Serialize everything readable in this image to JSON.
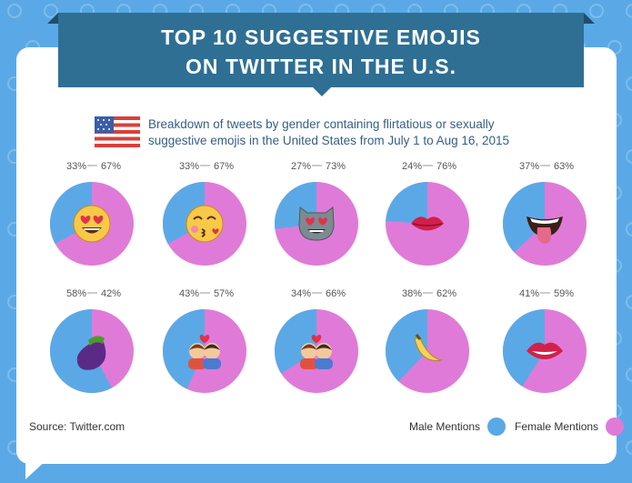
{
  "title": [
    "TOP 10 SUGGESTIVE EMOJIS",
    "ON TWITTER IN THE U.S."
  ],
  "subtitle": [
    "Breakdown of tweets by gender containing flirtatious or sexually",
    "suggestive emojis in the United States from July 1 to Aug 16, 2015"
  ],
  "source": "Source: Twitter.com",
  "legend": {
    "male": "Male Mentions",
    "female": "Female Mentions"
  },
  "colors": {
    "male": "#5aa9e6",
    "female": "#e07ad8",
    "background": "#5aa9e6",
    "banner": "#2f6f94"
  },
  "chart_data": {
    "type": "pie",
    "series_names": [
      "Male Mentions",
      "Female Mentions"
    ],
    "charts": [
      {
        "emoji": "heart-eyes-face-icon",
        "male": 33,
        "female": 67,
        "male_label": "33%",
        "female_label": "67%"
      },
      {
        "emoji": "kissing-face-icon",
        "male": 33,
        "female": 67,
        "male_label": "33%",
        "female_label": "67%"
      },
      {
        "emoji": "heart-eyes-cat-icon",
        "male": 27,
        "female": 73,
        "male_label": "27%",
        "female_label": "73%"
      },
      {
        "emoji": "kiss-lips-icon",
        "male": 24,
        "female": 76,
        "male_label": "24%",
        "female_label": "76%"
      },
      {
        "emoji": "tongue-out-icon",
        "male": 37,
        "female": 63,
        "male_label": "37%",
        "female_label": "63%"
      },
      {
        "emoji": "eggplant-icon",
        "male": 58,
        "female": 42,
        "male_label": "58%",
        "female_label": "42%"
      },
      {
        "emoji": "couple-kiss-icon",
        "male": 43,
        "female": 57,
        "male_label": "43%",
        "female_label": "57%"
      },
      {
        "emoji": "couple-heart-icon",
        "male": 34,
        "female": 66,
        "male_label": "34%",
        "female_label": "66%"
      },
      {
        "emoji": "banana-icon",
        "male": 38,
        "female": 62,
        "male_label": "38%",
        "female_label": "62%"
      },
      {
        "emoji": "mouth-icon",
        "male": 41,
        "female": 59,
        "male_label": "41%",
        "female_label": "59%"
      }
    ]
  }
}
